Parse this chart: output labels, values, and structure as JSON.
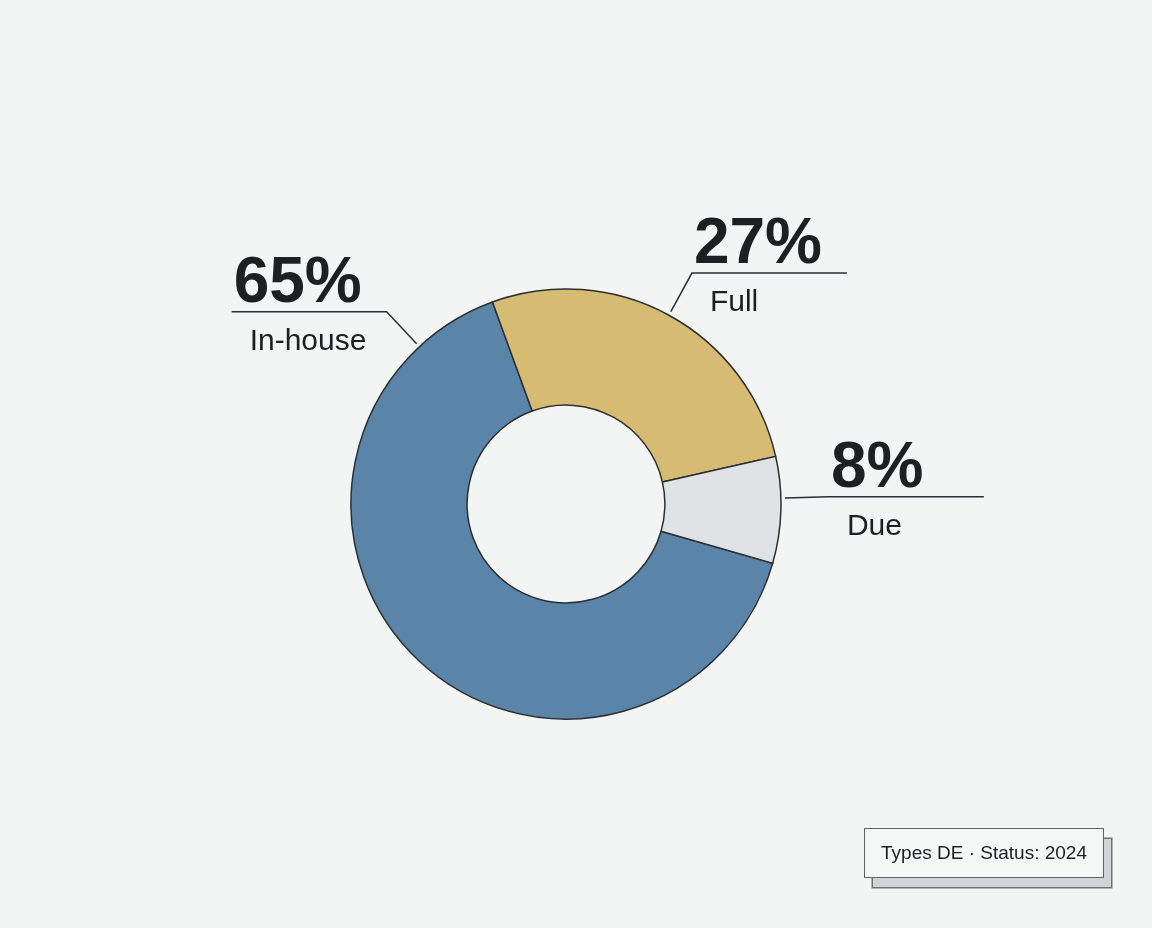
{
  "chart_data": {
    "type": "donut",
    "categories": [
      "In-house",
      "Full",
      "Due"
    ],
    "values": [
      65,
      27,
      8
    ],
    "colors": [
      "#5a85a8",
      "#d6bb73",
      "#e0e3e6"
    ],
    "value_labels": [
      "65%",
      "27%",
      "8%"
    ],
    "annotations": [
      "Types DE · Status: 2024"
    ]
  }
}
